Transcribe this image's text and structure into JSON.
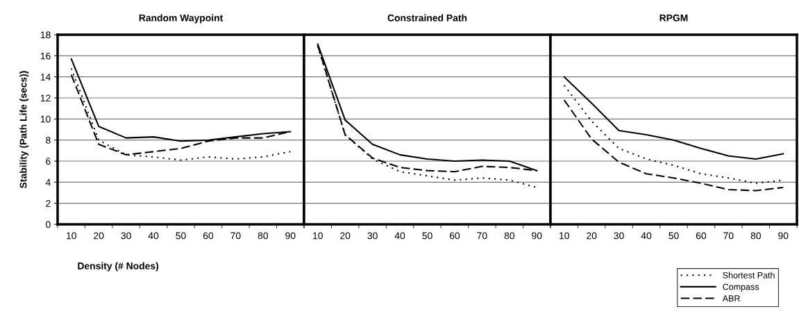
{
  "chart_data": [
    {
      "type": "line",
      "title": "Random Waypoint",
      "xlabel": "Density (# Nodes)",
      "ylabel": "Stability (Path Life (secs))",
      "categories": [
        "10",
        "20",
        "30",
        "40",
        "50",
        "60",
        "70",
        "80",
        "90"
      ],
      "ylim": [
        0,
        18
      ],
      "yticks": [
        0,
        2,
        4,
        6,
        8,
        10,
        12,
        14,
        16,
        18
      ],
      "grid": "y",
      "series": [
        {
          "color": "#000000",
          "line_style": "dotted",
          "values": [
            14.8,
            8.0,
            6.6,
            6.4,
            6.1,
            6.4,
            6.2,
            6.4,
            6.9
          ]
        },
        {
          "color": "#000000",
          "line_style": "solid",
          "values": [
            15.7,
            9.3,
            8.2,
            8.3,
            7.9,
            8.0,
            8.3,
            8.6,
            8.8
          ]
        },
        {
          "color": "#000000",
          "line_style": "dashed",
          "values": [
            14.2,
            7.6,
            6.6,
            6.9,
            7.2,
            7.9,
            8.2,
            8.2,
            8.8
          ]
        }
      ]
    },
    {
      "type": "line",
      "title": "Constrained Path",
      "categories": [
        "10",
        "20",
        "30",
        "40",
        "50",
        "60",
        "70",
        "80",
        "90"
      ],
      "ylim": [
        0,
        18
      ],
      "tick_labels": "x",
      "grid": "y",
      "series": [
        {
          "color": "#000000",
          "line_style": "dotted",
          "values": [
            16.9,
            8.5,
            6.2,
            5.0,
            4.6,
            4.2,
            4.4,
            4.2,
            3.5
          ]
        },
        {
          "color": "#000000",
          "line_style": "solid",
          "values": [
            17.1,
            9.9,
            7.6,
            6.6,
            6.2,
            6.0,
            6.1,
            6.0,
            5.1
          ]
        },
        {
          "color": "#000000",
          "line_style": "dashed",
          "values": [
            17.0,
            8.5,
            6.3,
            5.4,
            5.1,
            5.0,
            5.5,
            5.4,
            5.1
          ]
        }
      ]
    },
    {
      "type": "line",
      "title": "RPGM",
      "categories": [
        "10",
        "20",
        "30",
        "40",
        "50",
        "60",
        "70",
        "80",
        "90"
      ],
      "ylim": [
        0,
        18
      ],
      "tick_labels": "x",
      "grid": "y",
      "legend": "bottom",
      "series": [
        {
          "name": "Shortest Path",
          "color": "#000000",
          "line_style": "dotted",
          "values": [
            13.2,
            9.8,
            7.2,
            6.2,
            5.6,
            4.8,
            4.4,
            3.9,
            4.2
          ]
        },
        {
          "name": "Compass",
          "color": "#000000",
          "line_style": "solid",
          "values": [
            14.0,
            11.5,
            8.9,
            8.5,
            8.0,
            7.2,
            6.5,
            6.2,
            6.7
          ]
        },
        {
          "name": "ABR",
          "color": "#000000",
          "line_style": "dashed",
          "values": [
            11.8,
            8.1,
            5.9,
            4.8,
            4.4,
            3.9,
            3.3,
            3.2,
            3.5
          ]
        }
      ]
    }
  ]
}
